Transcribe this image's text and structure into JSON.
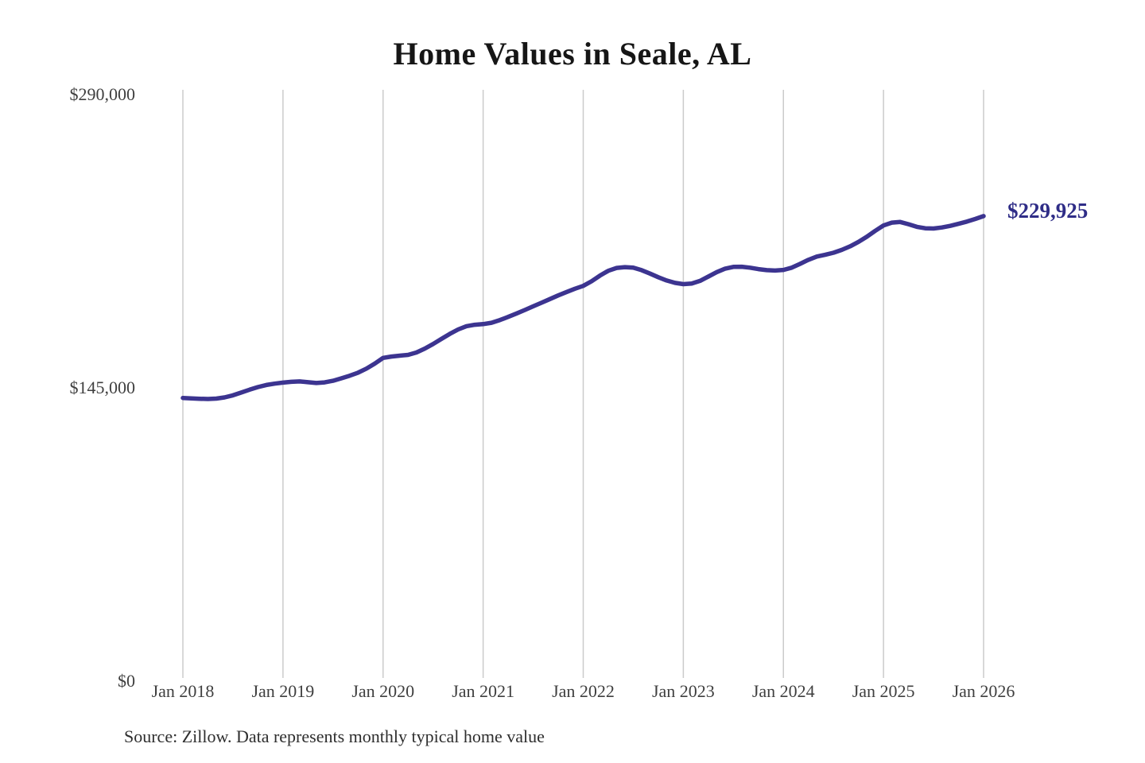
{
  "chart": {
    "title": "Home Values in Seale, AL",
    "end_label": "$229,925",
    "source": "Source: Zillow. Data represents monthly typical home value",
    "line_color": "#3c3490",
    "grid_color": "#cbcbcb",
    "label_color": "#3f3f3f",
    "end_label_color": "#2f2d87"
  },
  "chart_data": {
    "type": "line",
    "title": "Home Values in Seale, AL",
    "xlabel": "",
    "ylabel": "",
    "ylim": [
      0,
      290000
    ],
    "y_ticks": [
      290000,
      145000,
      0
    ],
    "y_tick_labels": [
      "$290,000",
      "$145,000",
      "$0"
    ],
    "x_tick_labels": [
      "Jan 2018",
      "Jan 2019",
      "Jan 2020",
      "Jan 2021",
      "Jan 2022",
      "Jan 2023",
      "Jan 2024",
      "Jan 2025",
      "Jan 2026"
    ],
    "grid": "vertical-only",
    "legend": "none",
    "annotation": "$229,925",
    "latest_value": 229925,
    "source": "Source: Zillow. Data represents monthly typical home value",
    "series": [
      {
        "name": "Typical home value",
        "start": "2018-01",
        "end": "2026-01",
        "frequency": "monthly",
        "values": [
          140000,
          139800,
          139600,
          139500,
          139700,
          140300,
          141300,
          142700,
          144100,
          145400,
          146400,
          147100,
          147600,
          148000,
          148200,
          147800,
          147400,
          147700,
          148500,
          149700,
          151000,
          152500,
          154500,
          157000,
          159800,
          160500,
          160900,
          161300,
          162500,
          164400,
          166700,
          169200,
          171700,
          173900,
          175500,
          176200,
          176500,
          177200,
          178500,
          180100,
          181800,
          183500,
          185300,
          187100,
          188900,
          190700,
          192400,
          194000,
          195400,
          197700,
          200500,
          202900,
          204300,
          204700,
          204400,
          203200,
          201500,
          199700,
          198100,
          196900,
          196300,
          196600,
          197900,
          200000,
          202200,
          203900,
          204800,
          204900,
          204400,
          203700,
          203200,
          203000,
          203300,
          204400,
          206300,
          208300,
          209900,
          210800,
          211800,
          213200,
          215000,
          217200,
          219700,
          222600,
          225300,
          226700,
          227000,
          225900,
          224600,
          223900,
          223800,
          224300,
          225100,
          226100,
          227200,
          228500,
          229925
        ]
      }
    ]
  }
}
